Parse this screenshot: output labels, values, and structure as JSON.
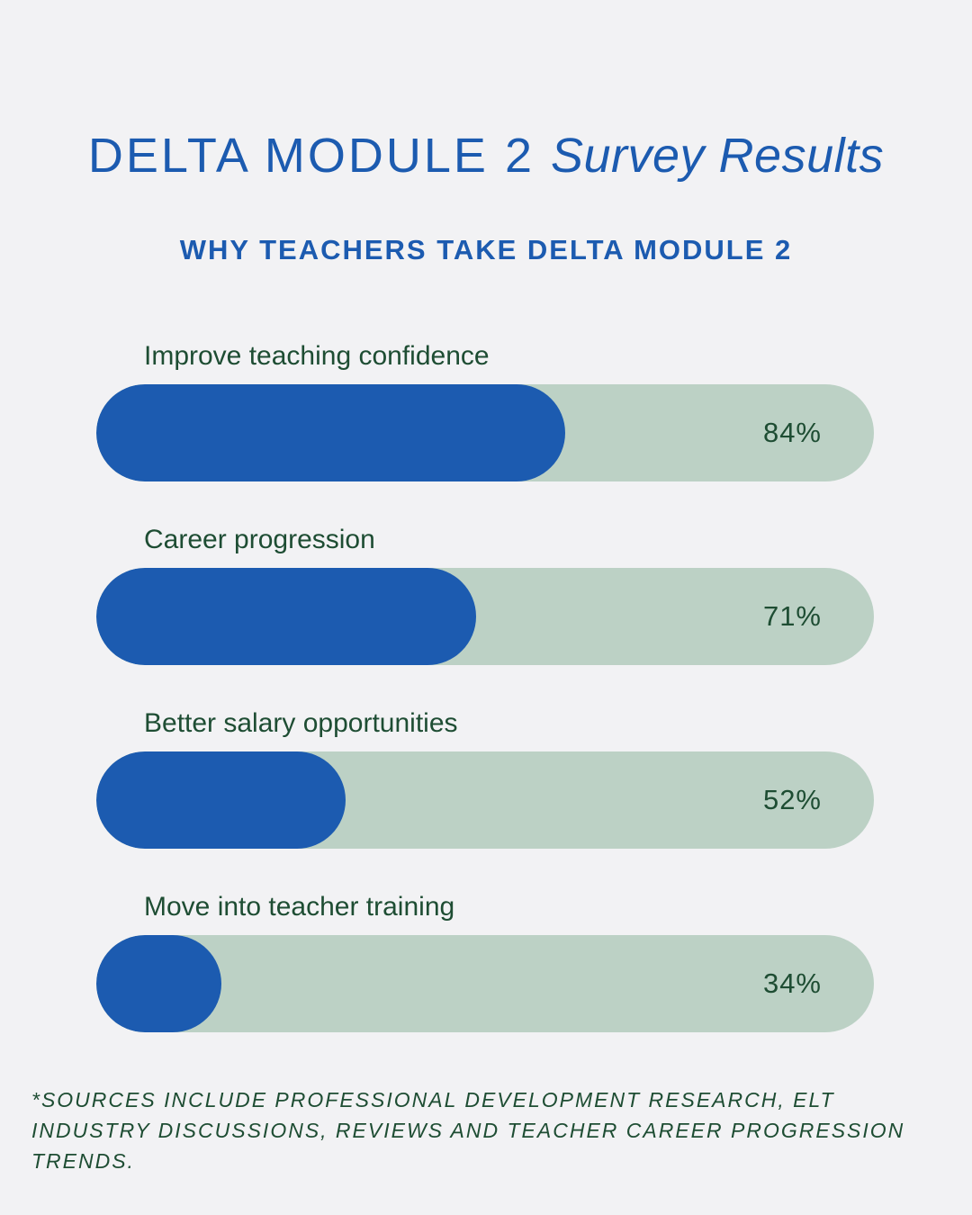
{
  "title": {
    "main": "DELTA MODULE 2",
    "accent": "Survey Results"
  },
  "subtitle": "WHY TEACHERS TAKE DELTA MODULE 2",
  "colors": {
    "background": "#f2f2f4",
    "bar_fill": "#1c5bb0",
    "bar_track": "#bcd1c5",
    "text_green": "#1e4d33",
    "heading_blue": "#1c5bb0"
  },
  "chart_data": {
    "type": "bar",
    "orientation": "horizontal",
    "title": "WHY TEACHERS TAKE DELTA MODULE 2",
    "categories": [
      "Improve teaching confidence",
      "Career progression",
      "Better salary opportunities",
      "Move into teacher training"
    ],
    "values": [
      84,
      71,
      52,
      34
    ],
    "value_labels": [
      "84%",
      "71%",
      "52%",
      "34%"
    ],
    "xlim": [
      0,
      100
    ],
    "grid": false
  },
  "footnote": "*SOURCES INCLUDE PROFESSIONAL DEVELOPMENT RESEARCH, ELT INDUSTRY DISCUSSIONS, REVIEWS AND TEACHER CAREER PROGRESSION TRENDS."
}
